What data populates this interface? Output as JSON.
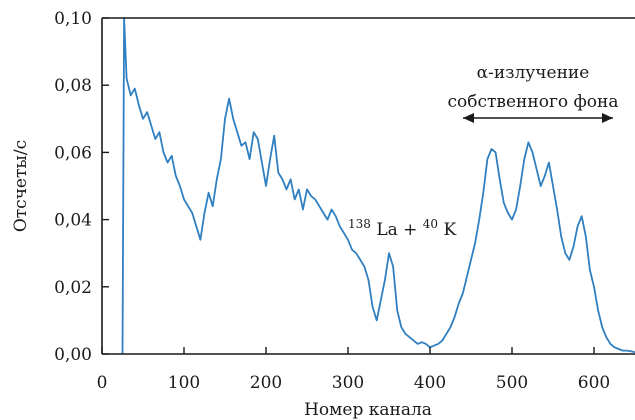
{
  "chart_data": {
    "type": "line",
    "title": "",
    "xlabel": "Номер канала",
    "ylabel": "Отсчеты/c",
    "xlim": [
      0,
      650
    ],
    "ylim": [
      0,
      0.1
    ],
    "xticks": [
      0,
      100,
      200,
      300,
      400,
      500,
      600
    ],
    "yticks": [
      0,
      0.02,
      0.04,
      0.06,
      0.08,
      0.1
    ],
    "xtick_labels": [
      "0",
      "100",
      "200",
      "300",
      "400",
      "500",
      "600"
    ],
    "ytick_labels": [
      "0,00",
      "0,02",
      "0,04",
      "0,06",
      "0,08",
      "0,10"
    ],
    "grid": false,
    "line_color": "#2f7fc1",
    "annotations": {
      "peak_label": {
        "sup1": "138",
        "el1": "La + ",
        "sup2": "40",
        "el2": "K"
      },
      "alpha_label_line1": "α-излучение",
      "alpha_label_line2": "собственного фона",
      "alpha_range_x": [
        440,
        625
      ]
    },
    "series": [
      {
        "x": [
          25,
          27,
          30,
          35,
          40,
          45,
          50,
          55,
          60,
          65,
          70,
          75,
          80,
          85,
          90,
          95,
          100,
          105,
          110,
          115,
          120,
          125,
          130,
          135,
          140,
          145,
          150,
          155,
          160,
          165,
          170,
          175,
          180,
          185,
          190,
          195,
          200,
          205,
          210,
          215,
          220,
          225,
          230,
          235,
          240,
          245,
          250,
          255,
          260,
          265,
          270,
          275,
          280,
          285,
          290,
          295,
          300,
          305,
          310,
          315,
          320,
          325,
          330,
          335,
          340,
          345,
          350,
          355,
          360,
          365,
          370,
          375,
          380,
          385,
          390,
          395,
          400,
          405,
          410,
          415,
          420,
          425,
          430,
          435,
          440,
          445,
          450,
          455,
          460,
          465,
          470,
          475,
          480,
          485,
          490,
          495,
          500,
          505,
          510,
          515,
          520,
          525,
          530,
          535,
          540,
          545,
          550,
          555,
          560,
          565,
          570,
          575,
          580,
          585,
          590,
          595,
          600,
          605,
          610,
          615,
          620,
          625,
          630,
          635,
          640,
          645,
          650
        ],
        "y": [
          0.0,
          0.1,
          0.082,
          0.077,
          0.079,
          0.074,
          0.07,
          0.072,
          0.068,
          0.064,
          0.066,
          0.06,
          0.057,
          0.059,
          0.053,
          0.05,
          0.046,
          0.044,
          0.042,
          0.038,
          0.034,
          0.042,
          0.048,
          0.044,
          0.052,
          0.058,
          0.07,
          0.076,
          0.07,
          0.066,
          0.062,
          0.063,
          0.058,
          0.066,
          0.064,
          0.057,
          0.05,
          0.058,
          0.065,
          0.054,
          0.052,
          0.049,
          0.052,
          0.046,
          0.049,
          0.043,
          0.049,
          0.047,
          0.046,
          0.044,
          0.042,
          0.04,
          0.043,
          0.041,
          0.038,
          0.036,
          0.034,
          0.031,
          0.03,
          0.028,
          0.026,
          0.022,
          0.014,
          0.01,
          0.016,
          0.022,
          0.03,
          0.026,
          0.013,
          0.008,
          0.006,
          0.005,
          0.004,
          0.003,
          0.0035,
          0.003,
          0.002,
          0.0025,
          0.003,
          0.004,
          0.006,
          0.008,
          0.011,
          0.015,
          0.018,
          0.023,
          0.028,
          0.033,
          0.04,
          0.048,
          0.058,
          0.061,
          0.06,
          0.052,
          0.045,
          0.042,
          0.04,
          0.043,
          0.05,
          0.058,
          0.063,
          0.06,
          0.055,
          0.05,
          0.053,
          0.057,
          0.05,
          0.043,
          0.035,
          0.03,
          0.028,
          0.032,
          0.038,
          0.041,
          0.035,
          0.025,
          0.02,
          0.013,
          0.008,
          0.005,
          0.003,
          0.002,
          0.0015,
          0.001,
          0.001,
          0.0008,
          0.0005
        ]
      }
    ]
  }
}
